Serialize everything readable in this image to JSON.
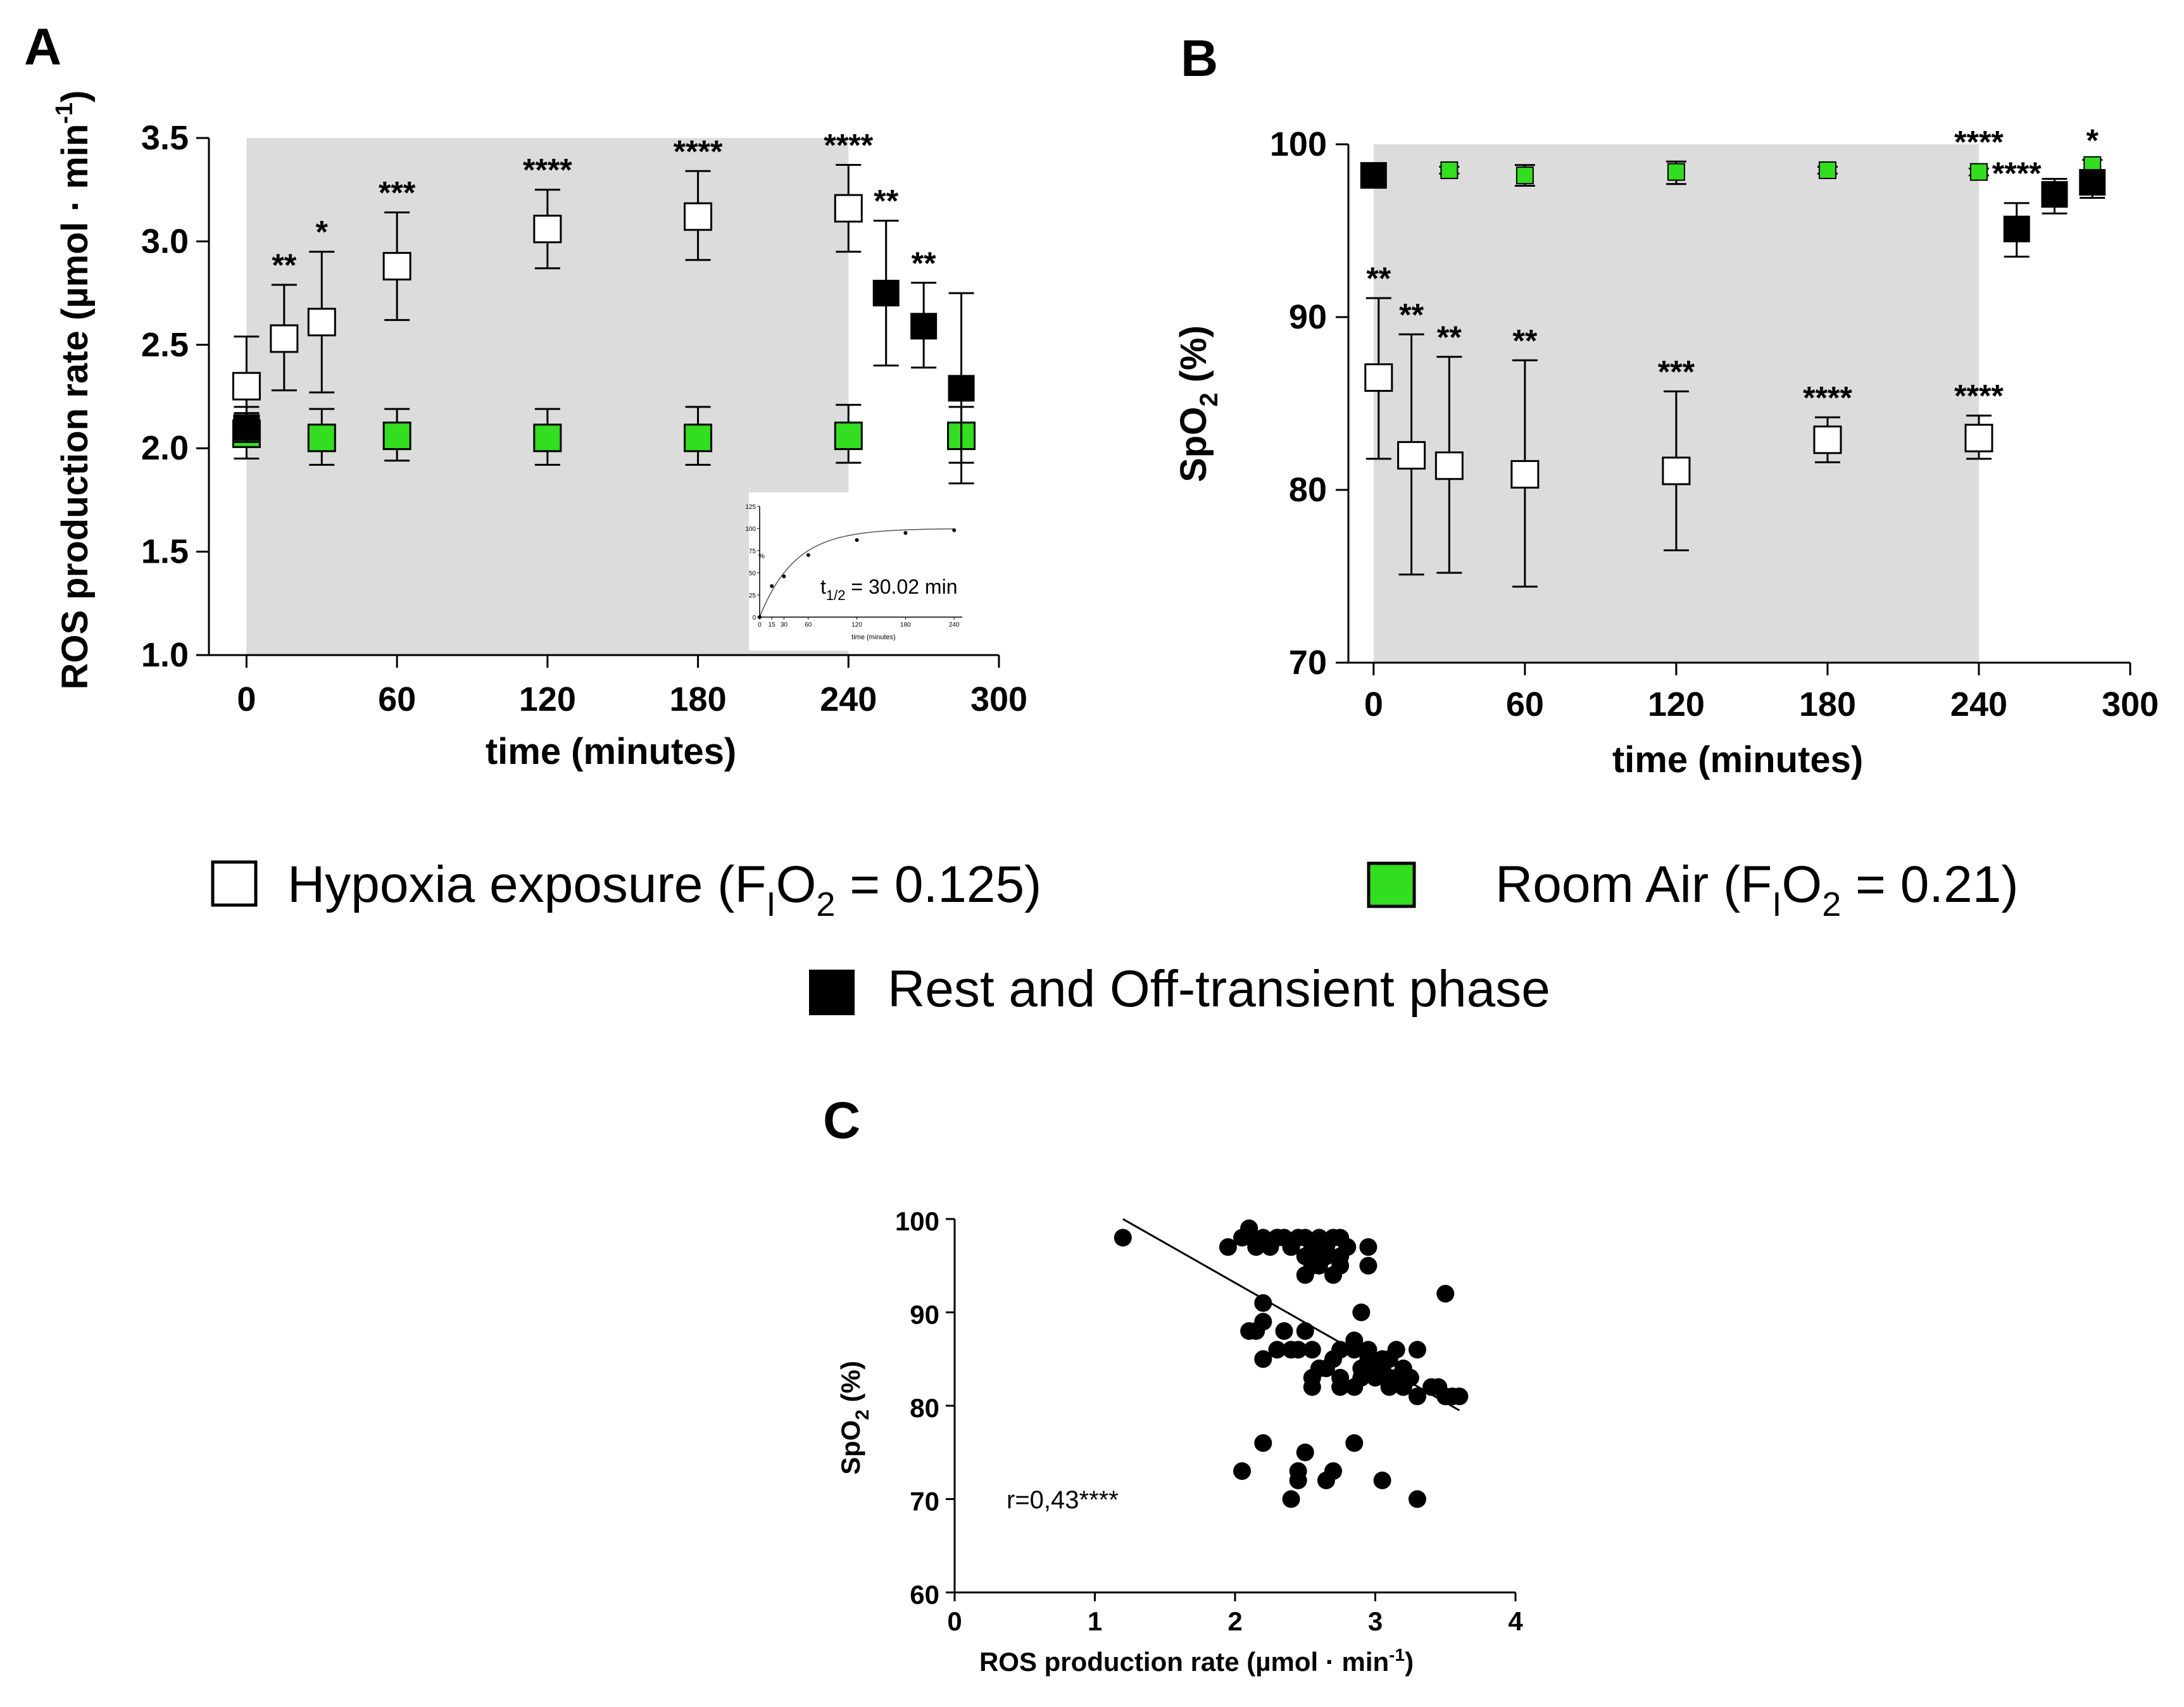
{
  "panels": {
    "a": "A",
    "b": "B",
    "c": "C"
  },
  "legend": {
    "hypoxia_main": "Hypoxia exposure (F",
    "hypoxia_sub1": "I",
    "hypoxia_mid": "O",
    "hypoxia_sub2": "2",
    "hypoxia_end": " = 0.125)",
    "room_main": "Room Air (F",
    "room_sub1": "I",
    "room_mid": "O",
    "room_sub2": "2",
    "room_end": " = 0.21)",
    "rest": "Rest and Off-transient phase"
  },
  "colors": {
    "room_air": "#33dd1f",
    "rest": "#000000",
    "hypoxia": "#ffffff",
    "shade": "#dcdcdc"
  },
  "chart_data": [
    {
      "id": "A",
      "type": "scatter",
      "xlabel": "time (minutes)",
      "ylabel_main": "ROS production rate (µmol · min",
      "ylabel_sup": "-1",
      "ylabel_close": ")",
      "xlim": [
        -15,
        300
      ],
      "ylim": [
        1.0,
        3.5
      ],
      "xticks": [
        "0",
        "60",
        "120",
        "180",
        "240",
        "300"
      ],
      "yticks": [
        "1.0",
        "1.5",
        "2.0",
        "2.5",
        "3.0",
        "3.5"
      ],
      "shaded_x": [
        0,
        240
      ],
      "series": [
        {
          "name": "Hypoxia exposure",
          "x": [
            0,
            15,
            30,
            60,
            120,
            180,
            240
          ],
          "y": [
            2.3,
            2.53,
            2.61,
            2.88,
            3.06,
            3.12,
            3.16
          ],
          "err_low": [
            2.08,
            2.28,
            2.27,
            2.62,
            2.87,
            2.91,
            2.95
          ],
          "err_high": [
            2.54,
            2.79,
            2.95,
            3.14,
            3.25,
            3.34,
            3.37
          ],
          "sig": [
            "",
            "**",
            "*",
            "***",
            "****",
            "****",
            "****"
          ]
        },
        {
          "name": "Room Air",
          "x": [
            0,
            30,
            60,
            120,
            180,
            240,
            285
          ],
          "y": [
            2.07,
            2.05,
            2.06,
            2.05,
            2.05,
            2.06,
            2.06
          ],
          "err_low": [
            1.95,
            1.92,
            1.94,
            1.92,
            1.92,
            1.93,
            1.93
          ],
          "err_high": [
            2.2,
            2.19,
            2.19,
            2.19,
            2.2,
            2.21,
            2.2
          ]
        },
        {
          "name": "Rest and Off-transient phase",
          "x": [
            0,
            255,
            270,
            285
          ],
          "y": [
            2.1,
            2.75,
            2.59,
            2.29
          ],
          "err_low": [
            2.03,
            2.4,
            2.39,
            1.83
          ],
          "err_high": [
            2.17,
            3.1,
            2.8,
            2.75
          ],
          "sig": [
            "",
            "**",
            "**",
            ""
          ]
        }
      ],
      "inset": {
        "annotation_main": "t",
        "annotation_sub": "1/2",
        "annotation_end": " = 30.02 min",
        "xlabel": "time (minutes)",
        "ylabel": "%",
        "xticks": [
          "0",
          "15",
          "30",
          "60",
          "120",
          "180",
          "240"
        ],
        "yticks": [
          "0",
          "25",
          "50",
          "75",
          "100",
          "125"
        ],
        "x": [
          0,
          15,
          30,
          60,
          120,
          180,
          240
        ],
        "y": [
          0,
          35,
          46,
          70,
          87,
          95,
          98
        ]
      }
    },
    {
      "id": "B",
      "type": "scatter",
      "xlabel": "time (minutes)",
      "ylabel_main": "SpO",
      "ylabel_sub": "2",
      "ylabel_end": " (%)",
      "xlim": [
        -10,
        300
      ],
      "ylim": [
        70,
        100
      ],
      "xticks": [
        "0",
        "60",
        "120",
        "180",
        "240",
        "300"
      ],
      "yticks": [
        "70",
        "80",
        "90",
        "100"
      ],
      "shaded_x": [
        0,
        240
      ],
      "series": [
        {
          "name": "Hypoxia exposure",
          "x": [
            2,
            15,
            30,
            60,
            120,
            180,
            240
          ],
          "y": [
            86.5,
            82.0,
            81.4,
            80.9,
            81.1,
            82.9,
            83.0
          ],
          "err_low": [
            81.8,
            75.1,
            75.2,
            74.4,
            76.5,
            81.6,
            81.8
          ],
          "err_high": [
            91.1,
            89.0,
            87.7,
            87.5,
            85.7,
            84.2,
            84.3
          ],
          "sig": [
            "**",
            "**",
            "**",
            "**",
            "***",
            "****",
            "****"
          ]
        },
        {
          "name": "Room Air",
          "x": [
            30,
            60,
            120,
            180,
            240,
            285
          ],
          "y": [
            98.5,
            98.2,
            98.4,
            98.5,
            98.4,
            98.8
          ],
          "err_low": [
            98.3,
            97.6,
            97.7,
            98.3,
            98.2,
            98.4
          ],
          "err_high": [
            98.7,
            98.8,
            99.0,
            98.7,
            98.6,
            99.1
          ]
        },
        {
          "name": "Rest and Off-transient phase",
          "x": [
            0,
            255,
            270,
            285
          ],
          "y": [
            98.2,
            95.1,
            97.1,
            97.8
          ],
          "err_low": [
            97.8,
            93.5,
            96.0,
            96.9
          ],
          "err_high": [
            98.6,
            96.6,
            98.0,
            98.5
          ],
          "sig": [
            "",
            "****",
            "",
            "*"
          ]
        }
      ],
      "extra_sig": {
        "x": 240,
        "label": "****"
      }
    },
    {
      "id": "C",
      "type": "scatter",
      "xlabel_main": "ROS production rate (µmol · min",
      "xlabel_sup": "-1",
      "xlabel_close": ")",
      "ylabel_main": "SpO",
      "ylabel_sub": "2",
      "ylabel_end": " (%)",
      "xlim": [
        0,
        4
      ],
      "ylim": [
        60,
        100
      ],
      "xticks": [
        "0",
        "1",
        "2",
        "3",
        "4"
      ],
      "yticks": [
        "60",
        "70",
        "80",
        "90",
        "100"
      ],
      "annotation": "r=0,43****",
      "fit_line": {
        "x": [
          1.2,
          3.6
        ],
        "y": [
          100,
          79.5
        ]
      },
      "points": {
        "x": [
          1.2,
          1.95,
          2.05,
          2.1,
          2.12,
          2.15,
          2.25,
          2.3,
          2.35,
          2.4,
          2.45,
          2.5,
          2.55,
          2.6,
          2.65,
          2.7,
          2.75,
          2.8,
          2.95,
          2.1,
          2.2,
          2.3,
          2.4,
          2.5,
          2.55,
          2.6,
          2.7,
          2.75,
          2.95,
          2.2,
          2.5,
          2.6,
          2.65,
          2.75,
          2.8,
          2.9,
          2.2,
          2.1,
          2.15,
          2.3,
          2.35,
          2.45,
          2.5,
          2.55,
          2.7,
          2.75,
          2.85,
          2.95,
          3.05,
          3.15,
          2.2,
          2.4,
          2.55,
          2.75,
          2.9,
          3.0,
          3.1,
          3.2,
          2.6,
          2.85,
          2.95,
          3.05,
          3.25,
          3.45,
          3.5,
          3.55,
          3.6,
          2.9,
          3.0,
          3.1,
          3.3,
          3.0,
          3.15,
          2.55,
          2.65,
          2.75,
          2.85,
          2.95,
          3.1,
          3.2,
          3.3,
          3.4,
          3.0,
          3.1,
          3.2,
          3.5,
          2.2,
          2.5,
          2.85,
          2.05,
          2.45,
          2.65,
          2.45,
          2.7,
          3.05,
          2.4,
          3.3
        ],
        "y": [
          98,
          97,
          98,
          99,
          98,
          97,
          97,
          98,
          98,
          97,
          98,
          98,
          97,
          98,
          97,
          98,
          98,
          97,
          97,
          99,
          98,
          98,
          97,
          96,
          95,
          96,
          94,
          96,
          95,
          91,
          94,
          95,
          96,
          95,
          97,
          90,
          89,
          88,
          88,
          86,
          88,
          86,
          88,
          86,
          85,
          86,
          87,
          86,
          85,
          86,
          85,
          86,
          83,
          82,
          84,
          83,
          82,
          84,
          84,
          86,
          85,
          84,
          83,
          82,
          81,
          81,
          81,
          83,
          84,
          85,
          86,
          84,
          83,
          82,
          84,
          83,
          82,
          84,
          85,
          82,
          81,
          82,
          84,
          83,
          82,
          92,
          76,
          75,
          76,
          73,
          73,
          72,
          72,
          73,
          72,
          70,
          70
        ]
      }
    }
  ]
}
